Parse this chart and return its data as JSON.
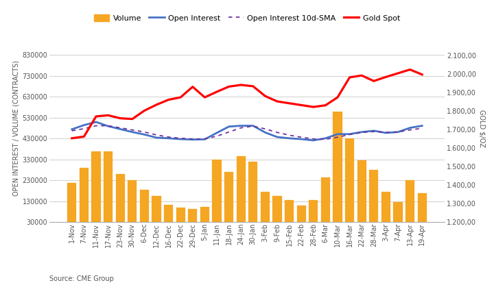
{
  "ylabel_left": "OPEN INTEREST / VOLUME (CONTRACTS)",
  "ylabel_right": "GOLD $/OZ",
  "source_text": "Source: CME Group",
  "legend_labels": [
    "Volume",
    "Open Interest",
    "Open Interest 10d-SMA",
    "Gold Spot"
  ],
  "x_labels": [
    "1-Nov",
    "7-Nov",
    "11-Nov",
    "17-Nov",
    "23-Nov",
    "30-Nov",
    "6-Dec",
    "12-Dec",
    "16-Dec",
    "22-Dec",
    "29-Dec",
    "5-Jan",
    "11-Jan",
    "18-Jan",
    "24-Jan",
    "30-Jan",
    "3-Feb",
    "9-Feb",
    "15-Feb",
    "22-Feb",
    "28-Feb",
    "6-Mar",
    "10-Mar",
    "16-Mar",
    "22-Mar",
    "28-Mar",
    "3-Apr",
    "7-Apr",
    "13-Apr",
    "19-Apr"
  ],
  "volume": [
    220000,
    290000,
    370000,
    370000,
    260000,
    230000,
    185000,
    155000,
    115000,
    100000,
    95000,
    105000,
    330000,
    270000,
    345000,
    320000,
    175000,
    155000,
    135000,
    110000,
    135000,
    245000,
    560000,
    430000,
    325000,
    280000,
    175000,
    125000,
    230000,
    170000
  ],
  "open_interest": [
    475000,
    495000,
    510000,
    490000,
    476000,
    462000,
    450000,
    435000,
    432000,
    428000,
    426000,
    427000,
    458000,
    488000,
    492000,
    492000,
    460000,
    438000,
    432000,
    428000,
    422000,
    432000,
    452000,
    452000,
    462000,
    468000,
    458000,
    462000,
    482000,
    492000
  ],
  "oi_sma": [
    468000,
    478000,
    492000,
    492000,
    482000,
    472000,
    462000,
    448000,
    438000,
    432000,
    429000,
    429000,
    442000,
    462000,
    482000,
    490000,
    477000,
    460000,
    447000,
    437000,
    429000,
    427000,
    437000,
    450000,
    460000,
    464000,
    460000,
    462000,
    472000,
    480000
  ],
  "gold_spot": [
    1654,
    1663,
    1772,
    1778,
    1762,
    1758,
    1803,
    1835,
    1862,
    1875,
    1932,
    1875,
    1905,
    1933,
    1942,
    1935,
    1882,
    1853,
    1843,
    1833,
    1823,
    1832,
    1875,
    1983,
    1993,
    1963,
    1985,
    2005,
    2025,
    1998
  ],
  "ylim_left": [
    30000,
    930000
  ],
  "ylim_right": [
    1200,
    2216
  ],
  "yticks_left": [
    30000,
    130000,
    230000,
    330000,
    430000,
    530000,
    630000,
    730000,
    830000
  ],
  "yticks_right": [
    1200,
    1300,
    1400,
    1500,
    1600,
    1700,
    1800,
    1900,
    2000,
    2100
  ],
  "bar_color": "#F5A623",
  "bar_edge_color": "#F5A623",
  "oi_color": "#4472C4",
  "oi_sma_color": "#7030A0",
  "gold_color": "#FF0000",
  "grid_color": "#C8C8C8",
  "fig_bg": "#FFFFFF",
  "tick_color": "#555555",
  "label_fontsize": 7.0,
  "tick_fontsize": 7.0
}
